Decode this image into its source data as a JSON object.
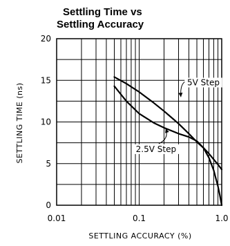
{
  "chart_data": {
    "type": "line",
    "title": [
      "Settling Time vs",
      "Settling Accuracy"
    ],
    "xlabel": "SETTLING ACCURACY (%)",
    "ylabel": "SETTLING TIME (ns)",
    "x_scale": "log",
    "xlim": [
      0.01,
      1.0
    ],
    "ylim": [
      0,
      20
    ],
    "x_ticks": [
      {
        "value": 0.01,
        "label": "0.01"
      },
      {
        "value": 0.1,
        "label": "0.1"
      },
      {
        "value": 1.0,
        "label": "1.0"
      }
    ],
    "y_ticks": [
      {
        "value": 0,
        "label": "0"
      },
      {
        "value": 5,
        "label": "5"
      },
      {
        "value": 10,
        "label": "10"
      },
      {
        "value": 15,
        "label": "15"
      },
      {
        "value": 20,
        "label": "20"
      }
    ],
    "grid": true,
    "series": [
      {
        "name": "5V Step",
        "x": [
          0.05,
          0.07,
          0.1,
          0.15,
          0.2,
          0.3,
          0.4,
          0.5,
          0.6,
          0.7,
          0.8,
          0.9,
          1.0
        ],
        "y": [
          15.4,
          14.6,
          13.6,
          12.3,
          11.3,
          9.8,
          8.6,
          7.6,
          6.9,
          6.2,
          5.5,
          4.9,
          4.3
        ]
      },
      {
        "name": "2.5V Step",
        "x": [
          0.05,
          0.07,
          0.1,
          0.15,
          0.2,
          0.3,
          0.4,
          0.5,
          0.6,
          0.7,
          0.8,
          0.9,
          0.95,
          1.0
        ],
        "y": [
          14.3,
          12.5,
          11.0,
          9.9,
          9.3,
          8.6,
          8.2,
          7.7,
          6.9,
          5.7,
          4.2,
          2.3,
          1.2,
          0.0
        ]
      }
    ],
    "annotations": [
      {
        "series": 0,
        "text": "5V Step",
        "label_at": [
          0.6,
          14.4
        ],
        "points_to": [
          0.32,
          13.0
        ]
      },
      {
        "series": 1,
        "text": "2.5V Step",
        "label_at": [
          0.16,
          6.4
        ],
        "points_to": [
          0.21,
          9.2
        ]
      }
    ]
  }
}
